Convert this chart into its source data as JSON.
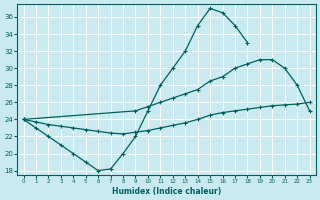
{
  "xlabel": "Humidex (Indice chaleur)",
  "bg_color": "#c8eaf0",
  "line_color": "#006060",
  "grid_color": "#ffffff",
  "xlim": [
    -0.5,
    23.5
  ],
  "ylim": [
    17.5,
    37.5
  ],
  "xticks": [
    0,
    1,
    2,
    3,
    4,
    5,
    6,
    7,
    8,
    9,
    10,
    11,
    12,
    13,
    14,
    15,
    16,
    17,
    18,
    19,
    20,
    21,
    22,
    23
  ],
  "yticks": [
    18,
    20,
    22,
    24,
    26,
    28,
    30,
    32,
    34,
    36
  ],
  "s1_x": [
    0,
    1,
    2,
    3,
    4,
    5,
    6,
    7,
    8,
    9,
    10,
    11,
    12,
    13,
    14,
    15,
    16,
    17,
    18
  ],
  "s1_y": [
    24,
    23,
    22,
    21,
    20,
    19,
    18,
    18.2,
    20,
    22,
    25,
    28,
    30,
    32,
    35,
    37,
    36.5,
    35,
    33
  ],
  "s2_x": [
    0,
    9,
    10,
    11,
    12,
    13,
    14,
    15,
    16,
    17,
    18,
    19,
    20,
    21,
    22,
    23
  ],
  "s2_y": [
    24,
    25,
    25.5,
    26,
    26.5,
    27,
    27.5,
    28.5,
    29,
    30,
    30.5,
    31,
    31,
    30,
    28,
    25
  ],
  "s3_x": [
    0,
    1,
    2,
    3,
    4,
    5,
    6,
    7,
    8,
    9,
    10,
    11,
    12,
    13,
    14,
    15,
    16,
    17,
    18,
    19,
    20,
    21,
    22,
    23
  ],
  "s3_y": [
    24,
    23.7,
    23.4,
    23.2,
    23,
    22.8,
    22.6,
    22.4,
    22.3,
    22.5,
    22.7,
    23,
    23.3,
    23.6,
    24,
    24.5,
    24.8,
    25,
    25.2,
    25.4,
    25.6,
    25.7,
    25.8,
    26
  ]
}
